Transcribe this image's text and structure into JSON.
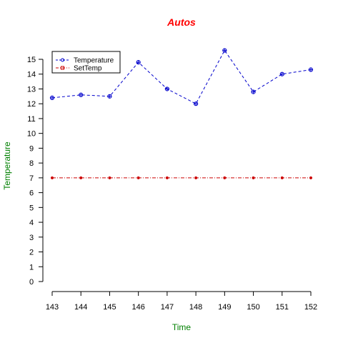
{
  "chart_data": {
    "type": "line",
    "title": "Autos",
    "xlabel": "Time",
    "ylabel": "Temperature",
    "x": [
      143,
      144,
      145,
      146,
      147,
      148,
      149,
      150,
      151,
      152
    ],
    "xlim": [
      143,
      152
    ],
    "ylim": [
      0,
      15
    ],
    "yticks": [
      0,
      1,
      2,
      3,
      4,
      5,
      6,
      7,
      8,
      9,
      10,
      11,
      12,
      13,
      14,
      15
    ],
    "grid": false,
    "legend_position": "top-left",
    "series": [
      {
        "name": "Temperature",
        "values": [
          12.4,
          12.6,
          12.5,
          14.8,
          13.0,
          12.0,
          15.6,
          12.8,
          14.0,
          14.3
        ],
        "color": "#0000cc",
        "line_style": "dashed",
        "marker": "circle-plus"
      },
      {
        "name": "SetTemp",
        "values": [
          7,
          7,
          7,
          7,
          7,
          7,
          7,
          7,
          7,
          7
        ],
        "color": "#cc0000",
        "line_style": "dash-dot",
        "marker": "dot"
      }
    ],
    "colors": {
      "title": "#ff0000",
      "axis_titles": "#008000"
    }
  }
}
